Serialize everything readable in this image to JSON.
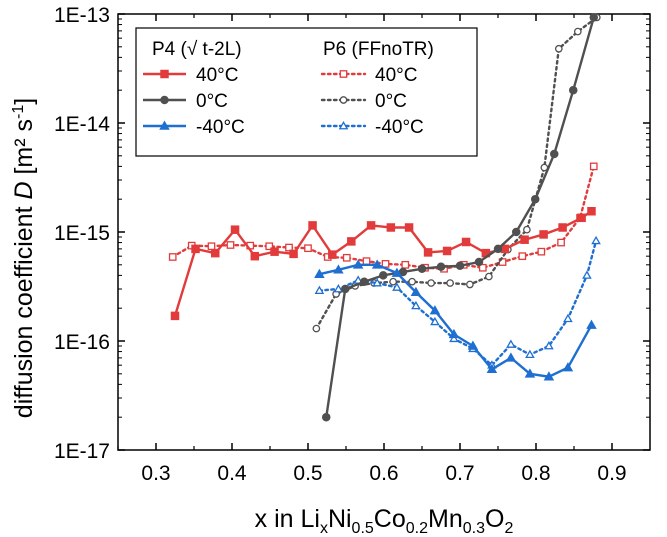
{
  "chart_data": {
    "type": "line",
    "title": "",
    "xlabel": {
      "prefix": "x in Li",
      "parts": [
        {
          "base": "",
          "sub": "x"
        },
        {
          "base": "Ni",
          "sub": "0.5"
        },
        {
          "base": "Co",
          "sub": "0.2"
        },
        {
          "base": "Mn",
          "sub": "0.3"
        },
        {
          "base": "O",
          "sub": "2"
        }
      ]
    },
    "ylabel": {
      "prefix": "diffusion coefficient ",
      "italic": "D",
      "unit_open": " [m² s",
      "unit_sup": "-1",
      "unit_close": "]"
    },
    "xlim": [
      0.25,
      0.95
    ],
    "ylim": [
      1e-17,
      1e-13
    ],
    "yscale": "log",
    "x_ticks": [
      "0.3",
      "0.4",
      "0.5",
      "0.6",
      "0.7",
      "0.8",
      "0.9"
    ],
    "y_ticks": [
      "1E-17",
      "1E-16",
      "1E-15",
      "1E-14",
      "1E-13"
    ],
    "legend": {
      "placement": "top-left",
      "group_titles": [
        "P4 (√ t-2L)",
        "P6 (FFnoTR)"
      ]
    },
    "series": [
      {
        "name": "40°C",
        "group": 0,
        "color": "#e23b3b",
        "marker": "square",
        "filled": true,
        "dash": "solid",
        "x": [
          0.325,
          0.352,
          0.378,
          0.404,
          0.43,
          0.456,
          0.481,
          0.506,
          0.532,
          0.557,
          0.583,
          0.609,
          0.633,
          0.658,
          0.683,
          0.708,
          0.734,
          0.759,
          0.785,
          0.81,
          0.835,
          0.86,
          0.873
        ],
        "y": [
          1.7e-16,
          7e-16,
          6.4e-16,
          1.05e-15,
          6e-16,
          6.6e-16,
          6.3e-16,
          1.15e-15,
          6.2e-16,
          8.2e-16,
          1.15e-15,
          1.1e-15,
          1.1e-15,
          6.5e-16,
          6.7e-16,
          8.1e-16,
          6.4e-16,
          7e-16,
          8.5e-16,
          9.5e-16,
          1.1e-15,
          1.35e-15,
          1.55e-15
        ]
      },
      {
        "name": "0°C",
        "group": 0,
        "color": "#505050",
        "marker": "circle",
        "filled": true,
        "dash": "solid",
        "x": [
          0.524,
          0.549,
          0.574,
          0.599,
          0.625,
          0.65,
          0.675,
          0.7,
          0.725,
          0.75,
          0.774,
          0.799,
          0.824,
          0.849,
          0.876
        ],
        "y": [
          2e-17,
          3e-16,
          3.5e-16,
          4e-16,
          4.3e-16,
          4.6e-16,
          4.8e-16,
          4.9e-16,
          5.3e-16,
          7e-16,
          1e-15,
          2e-15,
          5.2e-15,
          2e-14,
          9.3e-14
        ]
      },
      {
        "name": "-40°C",
        "group": 0,
        "color": "#1f6fd1",
        "marker": "triangle",
        "filled": true,
        "dash": "solid",
        "x": [
          0.515,
          0.54,
          0.566,
          0.591,
          0.617,
          0.642,
          0.667,
          0.692,
          0.717,
          0.742,
          0.767,
          0.792,
          0.817,
          0.842,
          0.873
        ],
        "y": [
          4.1e-16,
          4.5e-16,
          5e-16,
          5e-16,
          4.2e-16,
          2.8e-16,
          1.9e-16,
          1.15e-16,
          9e-17,
          5.5e-17,
          7e-17,
          5e-17,
          4.7e-17,
          5.7e-17,
          1.4e-16
        ]
      },
      {
        "name": "40°C",
        "group": 1,
        "color": "#e23b3b",
        "marker": "square",
        "filled": false,
        "dash": "dotted",
        "x": [
          0.322,
          0.347,
          0.373,
          0.398,
          0.424,
          0.449,
          0.475,
          0.5,
          0.526,
          0.551,
          0.577,
          0.602,
          0.628,
          0.654,
          0.679,
          0.705,
          0.73,
          0.756,
          0.782,
          0.807,
          0.833,
          0.858,
          0.876
        ],
        "y": [
          5.9e-16,
          7.5e-16,
          7.4e-16,
          7.6e-16,
          7.5e-16,
          7.4e-16,
          7.2e-16,
          7.1e-16,
          5.9e-16,
          5.8e-16,
          5.4e-16,
          5.1e-16,
          5e-16,
          4.7e-16,
          4.6e-16,
          5e-16,
          4.7e-16,
          5.3e-16,
          6e-16,
          6.6e-16,
          8e-16,
          1.35e-15,
          4e-15
        ]
      },
      {
        "name": "0°C",
        "group": 1,
        "color": "#505050",
        "marker": "circle",
        "filled": false,
        "dash": "dotted",
        "x": [
          0.511,
          0.537,
          0.562,
          0.587,
          0.612,
          0.637,
          0.662,
          0.687,
          0.713,
          0.738,
          0.763,
          0.788,
          0.811,
          0.83,
          0.855,
          0.88
        ],
        "y": [
          1.3e-16,
          2.7e-16,
          3.2e-16,
          3.4e-16,
          3.5e-16,
          3.5e-16,
          3.4e-16,
          3.4e-16,
          3.3e-16,
          3.9e-16,
          6.9e-16,
          1.05e-15,
          3.9e-15,
          4.8e-14,
          6.9e-14,
          9.3e-14
        ]
      },
      {
        "name": "-40°C",
        "group": 1,
        "color": "#1f6fd1",
        "marker": "triangle",
        "filled": false,
        "dash": "dotted",
        "x": [
          0.515,
          0.54,
          0.566,
          0.591,
          0.617,
          0.642,
          0.667,
          0.692,
          0.717,
          0.742,
          0.767,
          0.792,
          0.817,
          0.842,
          0.867,
          0.879
        ],
        "y": [
          2.9e-16,
          3e-16,
          3.6e-16,
          3.4e-16,
          3.1e-16,
          2.1e-16,
          1.5e-16,
          1.05e-16,
          8.5e-17,
          6e-17,
          9.3e-17,
          7.5e-17,
          9e-17,
          1.6e-16,
          4e-16,
          8.3e-16
        ]
      }
    ]
  }
}
